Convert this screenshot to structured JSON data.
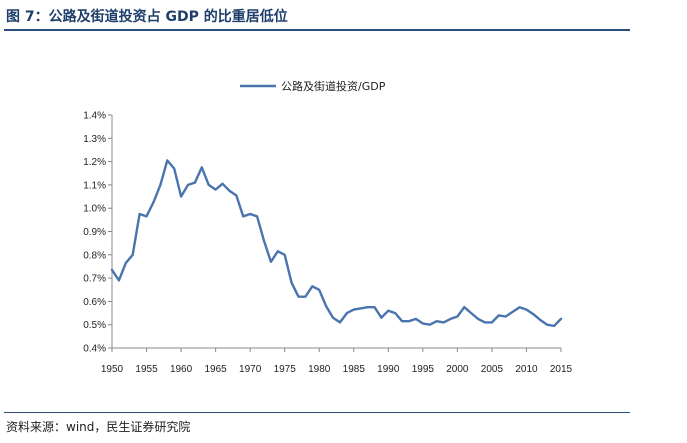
{
  "figure_title": "图 7：公路及街道投资占 GDP 的比重居低位",
  "source": "资料来源：wind，民生证券研究院",
  "chart_data": {
    "type": "line",
    "title": "",
    "xlabel": "",
    "ylabel": "",
    "xlim": [
      1950,
      2015
    ],
    "ylim": [
      0.4,
      1.4
    ],
    "x_ticks": [
      1950,
      1955,
      1960,
      1965,
      1970,
      1975,
      1980,
      1985,
      1990,
      1995,
      2000,
      2005,
      2010,
      2015
    ],
    "x_tick_labels": [
      "1950",
      "1955",
      "1960",
      "1965",
      "1970",
      "1975",
      "1980",
      "1985",
      "1990",
      "1995",
      "2000",
      "2005",
      "2010",
      "2015"
    ],
    "y_ticks": [
      0.4,
      0.5,
      0.6,
      0.7,
      0.8,
      0.9,
      1.0,
      1.1,
      1.2,
      1.3,
      1.4
    ],
    "y_tick_labels": [
      "0.4%",
      "0.5%",
      "0.6%",
      "0.7%",
      "0.8%",
      "0.9%",
      "1.0%",
      "1.1%",
      "1.2%",
      "1.3%",
      "1.4%"
    ],
    "grid": false,
    "legend_position": "top-center",
    "series_color": "#4a74ad",
    "series": [
      {
        "name": "公路及街道投资/GDP",
        "x": [
          1950,
          1951,
          1952,
          1953,
          1954,
          1955,
          1956,
          1957,
          1958,
          1959,
          1960,
          1961,
          1962,
          1963,
          1964,
          1965,
          1966,
          1967,
          1968,
          1969,
          1970,
          1971,
          1972,
          1973,
          1974,
          1975,
          1976,
          1977,
          1978,
          1979,
          1980,
          1981,
          1982,
          1983,
          1984,
          1985,
          1986,
          1987,
          1988,
          1989,
          1990,
          1991,
          1992,
          1993,
          1994,
          1995,
          1996,
          1997,
          1998,
          1999,
          2000,
          2001,
          2002,
          2003,
          2004,
          2005,
          2006,
          2007,
          2008,
          2009,
          2010,
          2011,
          2012,
          2013,
          2014,
          2015
        ],
        "values": [
          0.735,
          0.69,
          0.765,
          0.8,
          0.975,
          0.965,
          1.025,
          1.1,
          1.205,
          1.17,
          1.05,
          1.1,
          1.11,
          1.175,
          1.1,
          1.08,
          1.105,
          1.075,
          1.055,
          0.965,
          0.975,
          0.965,
          0.86,
          0.77,
          0.815,
          0.8,
          0.68,
          0.62,
          0.62,
          0.665,
          0.65,
          0.58,
          0.53,
          0.51,
          0.55,
          0.565,
          0.57,
          0.575,
          0.575,
          0.53,
          0.56,
          0.55,
          0.515,
          0.515,
          0.525,
          0.505,
          0.5,
          0.515,
          0.51,
          0.525,
          0.535,
          0.575,
          0.55,
          0.525,
          0.51,
          0.51,
          0.54,
          0.535,
          0.555,
          0.575,
          0.565,
          0.545,
          0.52,
          0.5,
          0.495,
          0.525
        ]
      }
    ]
  }
}
